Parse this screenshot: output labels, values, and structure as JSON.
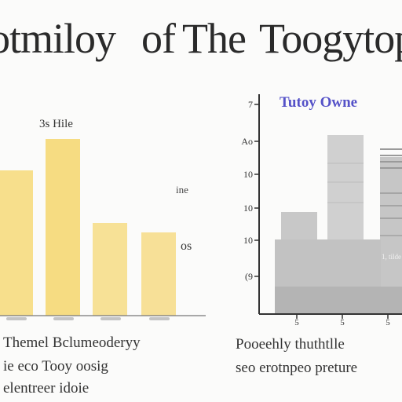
{
  "title": {
    "word1": "otmiloy",
    "word2": "of",
    "word3": "The",
    "word4": "Toogytop"
  },
  "chart_data": [
    {
      "type": "bar",
      "title": "",
      "annotations": [
        "3s Hile",
        "ine",
        "os"
      ],
      "categories": [
        "",
        "",
        "",
        ""
      ],
      "values": [
        185,
        225,
        118,
        106
      ],
      "colors": [
        "#f7df8c",
        "#f6dc82",
        "#f7e196",
        "#f7e097"
      ],
      "ylim": [
        0,
        240
      ],
      "grid": false
    },
    {
      "type": "bar",
      "title": "Tutoy Owne",
      "y_tick_labels": [
        "7",
        "Ao",
        "10",
        "10",
        "10",
        "(9"
      ],
      "x_tick_labels": [
        "5",
        "5",
        "5"
      ],
      "annotations": [
        "1, tilde"
      ],
      "series": [
        {
          "values": [
            70,
            60,
            72
          ]
        },
        {
          "values": [
            130,
            228,
            200
          ]
        }
      ],
      "ylim": [
        0,
        280
      ],
      "grid": false
    }
  ],
  "captions": {
    "left_line1": "Themel Bclumeoderyy",
    "left_line2": "ie eco Tooy oosig",
    "left_line3": "elentreer idoie",
    "right_line1": "Pooeehly thuthtlle",
    "right_line2": "seo erotnpeo preture"
  }
}
